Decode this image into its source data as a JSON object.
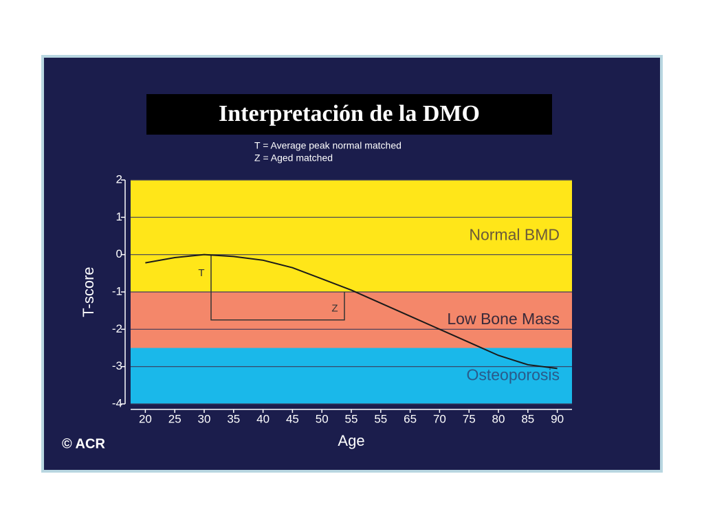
{
  "slide_title": "Interpretación de la DMO",
  "chart_data": {
    "type": "line",
    "subtitle": [
      "T = Average peak normal matched",
      "Z = Aged matched"
    ],
    "x_label": "Age",
    "y_label": "T-score",
    "categories": [
      "20",
      "25",
      "30",
      "35",
      "40",
      "45",
      "50",
      "55",
      "55",
      "65",
      "70",
      "75",
      "80",
      "85",
      "90"
    ],
    "values": [
      -0.22,
      -0.08,
      0,
      -0.05,
      -0.15,
      -0.35,
      -0.65,
      -0.95,
      -1.3,
      -1.65,
      -2.0,
      -2.35,
      -2.7,
      -2.95,
      -3.05
    ],
    "color": "#1a1a1a",
    "ylim": [
      -4,
      2
    ],
    "yticks": [
      2,
      1,
      0,
      -1,
      -2,
      -3,
      -4
    ],
    "grid": true,
    "bands": [
      {
        "name": "Normal BMD",
        "from": -1,
        "to": 2,
        "color": "#ffe619",
        "text_color": "#6b5a3a"
      },
      {
        "name": "Low Bone Mass",
        "from": -2.5,
        "to": -1,
        "color": "#f4876a",
        "text_color": "#3a2a3a"
      },
      {
        "name": "Osteoporosis",
        "from": -4,
        "to": -2.5,
        "color": "#1ab8ea",
        "text_color": "#2a5a8a"
      }
    ],
    "annotations": [
      "T",
      "Z"
    ],
    "credit": "© ACR"
  }
}
